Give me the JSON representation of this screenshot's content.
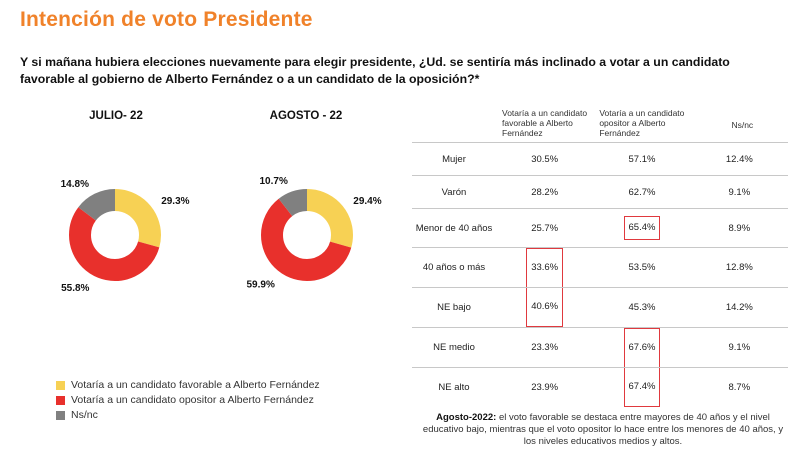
{
  "title": "Intención de voto Presidente",
  "question": "Y si mañana hubiera elecciones nuevamente para elegir presidente, ¿Ud. se sentiría más inclinado a votar a un candidato favorable al gobierno de Alberto Fernández o a un candidato de la oposición?*",
  "colors": {
    "favorable": "#f7d154",
    "opositor": "#e8302c",
    "nsnc": "#808080",
    "accent": "#f0822a"
  },
  "chart_data": [
    {
      "type": "pie",
      "title": "JULIO- 22",
      "categories": [
        "Votaría a un candidato favorable a Alberto Fernández",
        "Votaría a un candidato opositor a Alberto Fernández",
        "Ns/nc"
      ],
      "values": [
        29.3,
        55.8,
        14.8
      ],
      "labels": [
        "29.3%",
        "55.8%",
        "14.8%"
      ]
    },
    {
      "type": "pie",
      "title": "AGOSTO - 22",
      "categories": [
        "Votaría a un candidato favorable a Alberto Fernández",
        "Votaría a un candidato opositor a Alberto Fernández",
        "Ns/nc"
      ],
      "values": [
        29.4,
        59.9,
        10.7
      ],
      "labels": [
        "29.4%",
        "59.9%",
        "10.7%"
      ]
    }
  ],
  "legend": [
    {
      "label": "Votaría a un candidato favorable a Alberto Fernández",
      "color": "#f7d154"
    },
    {
      "label": "Votaría a un candidato opositor a Alberto Fernández",
      "color": "#e8302c"
    },
    {
      "label": "Ns/nc",
      "color": "#808080"
    }
  ],
  "table": {
    "headers": [
      "",
      "Votaría a un candidato favorable a Alberto Fernández",
      "Votaría a un candidato opositor a Alberto Fernández",
      "Ns/nc"
    ],
    "rows": [
      {
        "label": "Mujer",
        "favorable": "30.5%",
        "opositor": "57.1%",
        "nsnc": "12.4%"
      },
      {
        "label": "Varón",
        "favorable": "28.2%",
        "opositor": "62.7%",
        "nsnc": "9.1%"
      },
      {
        "label": "Menor de 40 años",
        "favorable": "25.7%",
        "opositor": "65.4%",
        "nsnc": "8.9%"
      },
      {
        "label": "40 años o más",
        "favorable": "33.6%",
        "opositor": "53.5%",
        "nsnc": "12.8%"
      },
      {
        "label": "NE bajo",
        "favorable": "40.6%",
        "opositor": "45.3%",
        "nsnc": "14.2%"
      },
      {
        "label": "NE medio",
        "favorable": "23.3%",
        "opositor": "67.6%",
        "nsnc": "9.1%"
      },
      {
        "label": "NE alto",
        "favorable": "23.9%",
        "opositor": "67.4%",
        "nsnc": "8.7%"
      }
    ]
  },
  "note": {
    "bold": "Agosto-2022:",
    "text": " el voto favorable se destaca entre mayores de 40 años y el nivel educativo bajo, mientras que el voto opositor lo hace entre los menores de 40 años, y los niveles educativos medios y altos."
  }
}
